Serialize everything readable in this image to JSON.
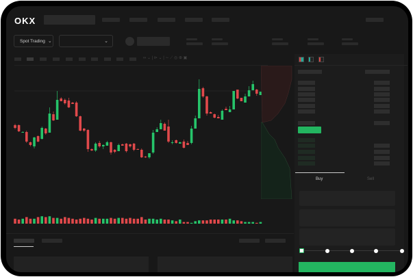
{
  "header": {
    "logo": "OKX"
  },
  "toolbar": {
    "market_selector": "Spot Trading"
  },
  "trade_panel": {
    "tabs": [
      {
        "label": "Buy",
        "active": true
      },
      {
        "label": "Sell",
        "active": false
      }
    ],
    "slider_level": 0,
    "submit_color": "#23b560"
  },
  "colors": {
    "up": "#26c46a",
    "down": "#e0494b",
    "background": "#181818"
  },
  "chart_data": {
    "type": "candlestick",
    "candles": [
      [
        68,
        64,
        70,
        62
      ],
      [
        68,
        59,
        69,
        58
      ],
      [
        57,
        58,
        59,
        57
      ],
      [
        58,
        44,
        60,
        42
      ],
      [
        43,
        39,
        44,
        37
      ],
      [
        37,
        50,
        51,
        34
      ],
      [
        52,
        44,
        53,
        43
      ],
      [
        48,
        64,
        66,
        47
      ],
      [
        63,
        56,
        64,
        54
      ],
      [
        57,
        85,
        94,
        57
      ],
      [
        84,
        75,
        88,
        74
      ],
      [
        76,
        105,
        118,
        76
      ],
      [
        107,
        103,
        109,
        103
      ],
      [
        105,
        100,
        107,
        98
      ],
      [
        104,
        94,
        108,
        93
      ],
      [
        101,
        99,
        102,
        99
      ],
      [
        101,
        81,
        103,
        80
      ],
      [
        81,
        60,
        82,
        59
      ],
      [
        63,
        60,
        64,
        58
      ],
      [
        61,
        33,
        62,
        29
      ],
      [
        33,
        31,
        34,
        30
      ],
      [
        31,
        41,
        43,
        29
      ],
      [
        42,
        37,
        45,
        35
      ],
      [
        37,
        39,
        40,
        33
      ],
      [
        38,
        43,
        45,
        38
      ],
      [
        43,
        28,
        44,
        25
      ],
      [
        32,
        29,
        33,
        27
      ],
      [
        30,
        39,
        41,
        30
      ],
      [
        40,
        38,
        41,
        38
      ],
      [
        41,
        30,
        42,
        28
      ],
      [
        40,
        37,
        41,
        35
      ],
      [
        41,
        32,
        42,
        30
      ],
      [
        33,
        32,
        34,
        32
      ],
      [
        32,
        21,
        34,
        20
      ],
      [
        22,
        21,
        23,
        20
      ],
      [
        21,
        27,
        27,
        19
      ],
      [
        28,
        57,
        61,
        26
      ],
      [
        58,
        62,
        65,
        58
      ],
      [
        62,
        71,
        76,
        62
      ],
      [
        70,
        60,
        72,
        60
      ],
      [
        66,
        44,
        76,
        42
      ],
      [
        42,
        43,
        46,
        40
      ],
      [
        46,
        42,
        47,
        41
      ],
      [
        41,
        43,
        44,
        41
      ],
      [
        44,
        35,
        47,
        34
      ],
      [
        42,
        39,
        45,
        39
      ],
      [
        42,
        63,
        67,
        40
      ],
      [
        63,
        78,
        82,
        63
      ],
      [
        78,
        121,
        135,
        78
      ],
      [
        122,
        110,
        124,
        108
      ],
      [
        110,
        85,
        111,
        82
      ],
      [
        87,
        85,
        88,
        85
      ],
      [
        84,
        79,
        85,
        78
      ],
      [
        80,
        78,
        83,
        78
      ],
      [
        76,
        89,
        91,
        76
      ],
      [
        92,
        90,
        95,
        90
      ],
      [
        87,
        91,
        96,
        87
      ],
      [
        91,
        118,
        118,
        91
      ],
      [
        120,
        107,
        120,
        106
      ],
      [
        108,
        103,
        108,
        103
      ],
      [
        101,
        110,
        114,
        101
      ],
      [
        110,
        119,
        125,
        110
      ],
      [
        119,
        128,
        133,
        119
      ],
      [
        120,
        114,
        121,
        111
      ],
      [
        112,
        117,
        117,
        112
      ]
    ],
    "volume": [
      6,
      5,
      6,
      8,
      6,
      6,
      8,
      9,
      8,
      9,
      7,
      7,
      6,
      8,
      7,
      6,
      5,
      6,
      7,
      6,
      5,
      7,
      6,
      6,
      6,
      7,
      6,
      7,
      7,
      6,
      7,
      6,
      6,
      8,
      5,
      6,
      6,
      5,
      6,
      5,
      5,
      4,
      3,
      5,
      2,
      2,
      1,
      3,
      4,
      4,
      4,
      5,
      5,
      5,
      5,
      5,
      6,
      4,
      4,
      3,
      2,
      2,
      2,
      1,
      2
    ]
  }
}
